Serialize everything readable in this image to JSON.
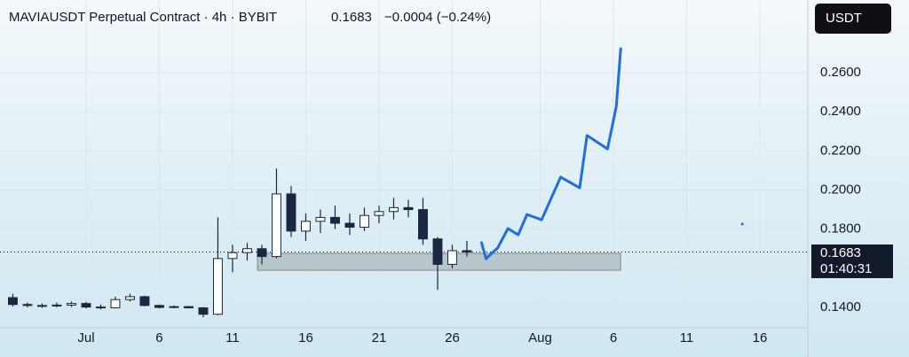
{
  "chart_data": {
    "type": "candlestick",
    "title": "MAVIAUSDT Perpetual Contract · 4h · BYBIT",
    "price": "0.1683",
    "change": "−0.0004 (−0.24%)",
    "currency_button": "USDT",
    "countdown": "01:40:31",
    "last_price": {
      "value": 0.1683,
      "label": "0.1683"
    },
    "x": [
      -5,
      -4,
      -3,
      -2,
      -1,
      0,
      1,
      2,
      3,
      4,
      5,
      6,
      7,
      8,
      9,
      10,
      11,
      12,
      13,
      14,
      15,
      16,
      17,
      18,
      19,
      20,
      21,
      22,
      23,
      24,
      25,
      26
    ],
    "open": [
      0.145,
      0.1415,
      0.141,
      0.1408,
      0.1412,
      0.142,
      0.1402,
      0.1398,
      0.144,
      0.1455,
      0.141,
      0.14,
      0.1404,
      0.1398,
      0.1365,
      0.165,
      0.168,
      0.17,
      0.166,
      0.198,
      0.179,
      0.184,
      0.186,
      0.183,
      0.181,
      0.187,
      0.189,
      0.191,
      0.19,
      0.175,
      0.162,
      0.169
    ],
    "high": [
      0.147,
      0.1425,
      0.142,
      0.1425,
      0.143,
      0.1428,
      0.1415,
      0.1455,
      0.147,
      0.146,
      0.1415,
      0.141,
      0.1408,
      0.1402,
      0.186,
      0.172,
      0.173,
      0.172,
      0.211,
      0.202,
      0.188,
      0.19,
      0.192,
      0.188,
      0.191,
      0.192,
      0.196,
      0.195,
      0.196,
      0.176,
      0.172,
      0.174
    ],
    "low": [
      0.1405,
      0.14,
      0.1398,
      0.14,
      0.1402,
      0.1395,
      0.139,
      0.1395,
      0.143,
      0.1405,
      0.1395,
      0.1396,
      0.1395,
      0.135,
      0.136,
      0.158,
      0.164,
      0.162,
      0.165,
      0.176,
      0.174,
      0.178,
      0.18,
      0.177,
      0.179,
      0.183,
      0.185,
      0.186,
      0.172,
      0.149,
      0.16,
      0.166
    ],
    "close": [
      0.1415,
      0.141,
      0.1408,
      0.1412,
      0.142,
      0.1402,
      0.1398,
      0.144,
      0.1455,
      0.141,
      0.14,
      0.1404,
      0.1398,
      0.1365,
      0.165,
      0.168,
      0.17,
      0.166,
      0.198,
      0.179,
      0.184,
      0.186,
      0.183,
      0.181,
      0.187,
      0.189,
      0.191,
      0.19,
      0.175,
      0.162,
      0.169,
      0.1683
    ],
    "color": "#1c2541",
    "drawing": {
      "color": "#1f6fe0",
      "x": [
        27.0,
        27.3,
        28.1,
        28.8,
        29.5,
        30.1,
        31.1,
        32.4,
        33.7,
        34.2,
        35.6,
        36.2,
        36.5
      ],
      "y": [
        0.1731,
        0.1649,
        0.1704,
        0.1803,
        0.1771,
        0.1875,
        0.1848,
        0.2066,
        0.2011,
        0.2279,
        0.221,
        0.2428,
        0.2722
      ]
    },
    "zone": {
      "x": [
        11.7,
        36.5
      ],
      "y": [
        0.159,
        0.1676
      ],
      "color": "#a9b6b8"
    },
    "dot": {
      "x": 44.8,
      "y": 0.1826
    },
    "xlim": [
      -5.27,
      48.97
    ],
    "ylim": [
      0.1296,
      0.2971
    ],
    "xticks": [
      {
        "value": 0,
        "label": "Jul"
      },
      {
        "value": 5,
        "label": "6"
      },
      {
        "value": 10,
        "label": "11"
      },
      {
        "value": 15,
        "label": "16"
      },
      {
        "value": 20,
        "label": "21"
      },
      {
        "value": 25,
        "label": "26"
      },
      {
        "value": 31,
        "label": "Aug"
      },
      {
        "value": 36,
        "label": "6"
      },
      {
        "value": 41,
        "label": "11"
      },
      {
        "value": 46,
        "label": "16"
      }
    ],
    "yticks": [
      {
        "value": 0.14,
        "label": "0.1400"
      },
      {
        "value": 0.18,
        "label": "0.1800"
      },
      {
        "value": 0.2,
        "label": "0.2000"
      },
      {
        "value": 0.22,
        "label": "0.2200"
      },
      {
        "value": 0.24,
        "label": "0.2400"
      },
      {
        "value": 0.26,
        "label": "0.2600"
      }
    ],
    "grid": true
  }
}
